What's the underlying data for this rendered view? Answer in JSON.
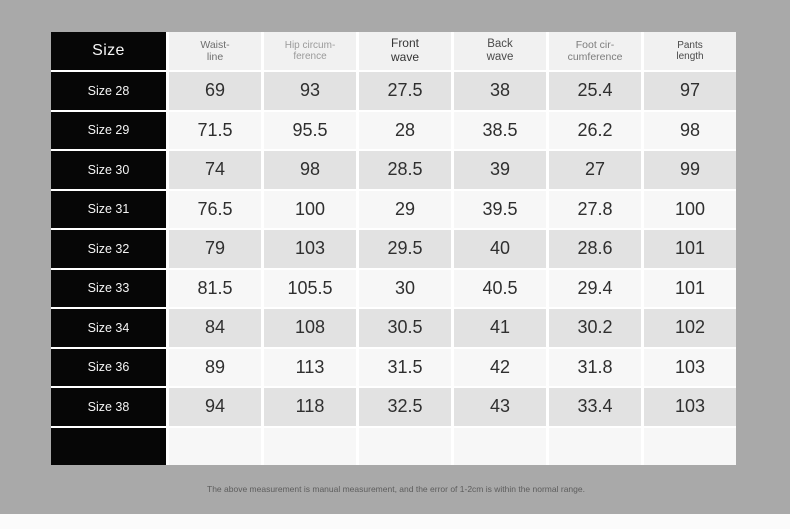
{
  "table": {
    "corner_label": "Size",
    "columns": [
      {
        "label": "Waist-\nline"
      },
      {
        "label": "Hip circum-\nference"
      },
      {
        "label": "Front\nwave"
      },
      {
        "label": "Back\nwave"
      },
      {
        "label": "Foot cir-\ncumference"
      },
      {
        "label": "Pants\nlength"
      }
    ]
  },
  "chart_data": {
    "type": "table",
    "columns": [
      "Size",
      "Waist-line",
      "Hip circum-ference",
      "Front wave",
      "Back wave",
      "Foot cir-cumference",
      "Pants length"
    ],
    "rows": [
      [
        "Size 28",
        69,
        93,
        27.5,
        38,
        25.4,
        97
      ],
      [
        "Size 29",
        71.5,
        95.5,
        28,
        38.5,
        26.2,
        98
      ],
      [
        "Size 30",
        74,
        98,
        28.5,
        39,
        27,
        99
      ],
      [
        "Size 31",
        76.5,
        100,
        29,
        39.5,
        27.8,
        100
      ],
      [
        "Size 32",
        79,
        103,
        29.5,
        40,
        28.6,
        101
      ],
      [
        "Size 33",
        81.5,
        105.5,
        30,
        40.5,
        29.4,
        101
      ],
      [
        "Size 34",
        84,
        108,
        30.5,
        41,
        30.2,
        102
      ],
      [
        "Size 36",
        89,
        113,
        31.5,
        42,
        31.8,
        103
      ],
      [
        "Size 38",
        94,
        118,
        32.5,
        43,
        33.4,
        103
      ]
    ],
    "note": "The above measurement is manual measurement, and the error of 1-2cm is within the normal range."
  },
  "colors": {
    "page_bg": "#a9a9a9",
    "size_column_bg": "#060606",
    "header_cell_bg": "#f1f1f1",
    "row_shade_dark": "#e2e2e2",
    "row_shade_light": "#f7f7f7",
    "bottom_strip": "#fbfbfb"
  }
}
